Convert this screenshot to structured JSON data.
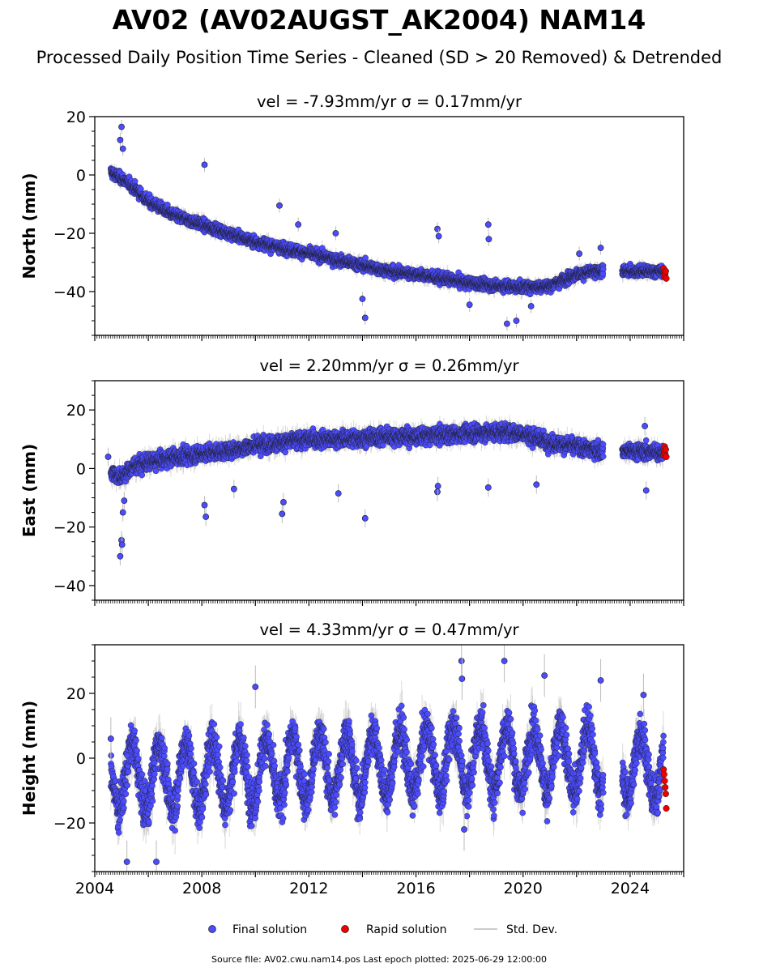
{
  "title": "AV02 (AV02AUGST_AK2004) NAM14",
  "subtitle": "Processed Daily Position Time Series - Cleaned (SD > 20 Removed) & Detrended",
  "footer": "Source file: AV02.cwu.nam14.pos  Last epoch plotted: 2025-06-29 12:00:00",
  "colors": {
    "final": "#4c4cff",
    "rapid": "#ee0000",
    "stddev": "#bbbbbb",
    "marker_edge": "#1a1a1a"
  },
  "legend": [
    {
      "label": "Final solution",
      "kind": "final"
    },
    {
      "label": "Rapid solution",
      "kind": "rapid"
    },
    {
      "label": "Std. Dev.",
      "kind": "stddev"
    }
  ],
  "chart_data": [
    {
      "type": "scatter",
      "title": "vel = -7.93mm/yr   σ = 0.17mm/yr",
      "ylabel": "North (mm)",
      "xlim": [
        2004.0,
        2026.0
      ],
      "ylim": [
        -55,
        20
      ],
      "yticks": [
        20,
        0,
        -20,
        -40
      ],
      "xticks": [
        2004,
        2008,
        2012,
        2016,
        2020,
        2024
      ],
      "xtick_labels": [
        "",
        "",
        "",
        "",
        "",
        ""
      ],
      "trend": [
        [
          2004.6,
          1
        ],
        [
          2005.3,
          -3
        ],
        [
          2006,
          -9
        ],
        [
          2007,
          -14
        ],
        [
          2008,
          -17
        ],
        [
          2009,
          -20
        ],
        [
          2010,
          -23
        ],
        [
          2011,
          -25
        ],
        [
          2012,
          -27
        ],
        [
          2013,
          -29
        ],
        [
          2014,
          -31
        ],
        [
          2015,
          -33
        ],
        [
          2016,
          -34
        ],
        [
          2017,
          -35.5
        ],
        [
          2018,
          -37
        ],
        [
          2019,
          -38
        ],
        [
          2020,
          -38.5
        ],
        [
          2021,
          -38
        ],
        [
          2021.5,
          -36
        ],
        [
          2022,
          -34
        ],
        [
          2022.9,
          -33
        ],
        [
          2023.0,
          null
        ],
        [
          2023.7,
          null
        ],
        [
          2023.7,
          -33
        ],
        [
          2025.3,
          -33
        ]
      ],
      "outliers": [
        [
          2005.0,
          16.5
        ],
        [
          2004.95,
          12
        ],
        [
          2005.05,
          9
        ],
        [
          2008.1,
          3.5
        ],
        [
          2010.9,
          -10.5
        ],
        [
          2011.6,
          -17
        ],
        [
          2013.0,
          -20
        ],
        [
          2014.0,
          -42.5
        ],
        [
          2014.1,
          -49
        ],
        [
          2016.8,
          -18.5
        ],
        [
          2016.85,
          -21
        ],
        [
          2018.7,
          -17
        ],
        [
          2018.72,
          -22
        ],
        [
          2019.4,
          -51
        ],
        [
          2019.75,
          -50
        ],
        [
          2020.3,
          -45
        ],
        [
          2018.0,
          -44.5
        ],
        [
          2022.1,
          -27
        ],
        [
          2022.9,
          -25
        ]
      ],
      "rapid": [
        [
          2025.25,
          -32
        ],
        [
          2025.27,
          -33.5
        ],
        [
          2025.29,
          -35
        ],
        [
          2025.31,
          -34
        ],
        [
          2025.33,
          -33
        ],
        [
          2025.35,
          -35.5
        ]
      ],
      "noise": 1.3,
      "err": 2.0
    },
    {
      "type": "scatter",
      "title": "vel = 2.20mm/yr   σ = 0.26mm/yr",
      "ylabel": "East (mm)",
      "xlim": [
        2004.0,
        2026.0
      ],
      "ylim": [
        -45,
        30
      ],
      "yticks": [
        20,
        0,
        -20,
        -40
      ],
      "xticks": [
        2004,
        2008,
        2012,
        2016,
        2020,
        2024
      ],
      "xtick_labels": [
        "",
        "",
        "",
        "",
        "",
        ""
      ],
      "trend": [
        [
          2004.6,
          -1
        ],
        [
          2005,
          -3
        ],
        [
          2005.5,
          1
        ],
        [
          2006,
          2
        ],
        [
          2007,
          4
        ],
        [
          2008,
          5
        ],
        [
          2009,
          6
        ],
        [
          2010,
          8
        ],
        [
          2011,
          9
        ],
        [
          2012,
          10
        ],
        [
          2013,
          10
        ],
        [
          2014,
          10.5
        ],
        [
          2015,
          11
        ],
        [
          2016,
          11
        ],
        [
          2017,
          11.5
        ],
        [
          2018,
          12
        ],
        [
          2019,
          12.5
        ],
        [
          2020,
          12
        ],
        [
          2021,
          9
        ],
        [
          2022,
          7.5
        ],
        [
          2022.9,
          6
        ],
        [
          2023.0,
          null
        ],
        [
          2023.7,
          null
        ],
        [
          2023.7,
          6
        ],
        [
          2025.3,
          5.5
        ]
      ],
      "outliers": [
        [
          2004.95,
          -30
        ],
        [
          2005.0,
          -24.5
        ],
        [
          2005.02,
          -26
        ],
        [
          2005.05,
          -15
        ],
        [
          2005.1,
          -11
        ],
        [
          2008.1,
          -12.5
        ],
        [
          2008.15,
          -16.5
        ],
        [
          2011.0,
          -15.5
        ],
        [
          2011.05,
          -11.5
        ],
        [
          2013.1,
          -8.5
        ],
        [
          2014.1,
          -17
        ],
        [
          2009.2,
          -7
        ],
        [
          2016.8,
          -8
        ],
        [
          2016.82,
          -6
        ],
        [
          2018.7,
          -6.5
        ],
        [
          2020.5,
          -5.5
        ],
        [
          2024.6,
          -7.5
        ],
        [
          2024.55,
          14.5
        ],
        [
          2004.5,
          4
        ]
      ],
      "rapid": [
        [
          2025.25,
          4.5
        ],
        [
          2025.27,
          6
        ],
        [
          2025.29,
          7.5
        ],
        [
          2025.31,
          5
        ],
        [
          2025.33,
          6.5
        ],
        [
          2025.35,
          4
        ]
      ],
      "noise": 1.9,
      "err": 2.6
    },
    {
      "type": "scatter",
      "title": "vel = 4.33mm/yr   σ = 0.47mm/yr",
      "ylabel": "Height (mm)",
      "xlim": [
        2004.0,
        2026.0
      ],
      "ylim": [
        -35,
        35
      ],
      "yticks": [
        20,
        0,
        -20
      ],
      "xticks": [
        2004,
        2008,
        2012,
        2016,
        2020,
        2024
      ],
      "xtick_labels": [
        "2004",
        "2008",
        "2012",
        "2016",
        "2020",
        "2024"
      ],
      "trend": [
        [
          2004.6,
          -5
        ],
        [
          2006,
          -6
        ],
        [
          2008,
          -5
        ],
        [
          2010,
          -4
        ],
        [
          2012,
          -3
        ],
        [
          2014,
          -2
        ],
        [
          2016,
          -1
        ],
        [
          2018,
          0
        ],
        [
          2020,
          0
        ],
        [
          2022,
          -1
        ],
        [
          2022.9,
          0
        ],
        [
          2023.0,
          null
        ],
        [
          2023.7,
          null
        ],
        [
          2023.7,
          -2
        ],
        [
          2025.3,
          -3
        ]
      ],
      "seasonal_amp": 10,
      "outliers": [
        [
          2010.0,
          22
        ],
        [
          2017.7,
          30
        ],
        [
          2017.72,
          24.5
        ],
        [
          2019.3,
          30
        ],
        [
          2020.8,
          25.5
        ],
        [
          2022.9,
          24
        ],
        [
          2024.5,
          19.5
        ],
        [
          2005.2,
          -32
        ],
        [
          2006.3,
          -32
        ],
        [
          2004.6,
          6
        ],
        [
          2017.8,
          -22
        ]
      ],
      "rapid": [
        [
          2025.25,
          -3.5
        ],
        [
          2025.27,
          -5
        ],
        [
          2025.29,
          -7
        ],
        [
          2025.31,
          -9
        ],
        [
          2025.33,
          -11
        ],
        [
          2025.35,
          -15.5
        ]
      ],
      "noise": 4.5,
      "err": 5.5
    }
  ]
}
